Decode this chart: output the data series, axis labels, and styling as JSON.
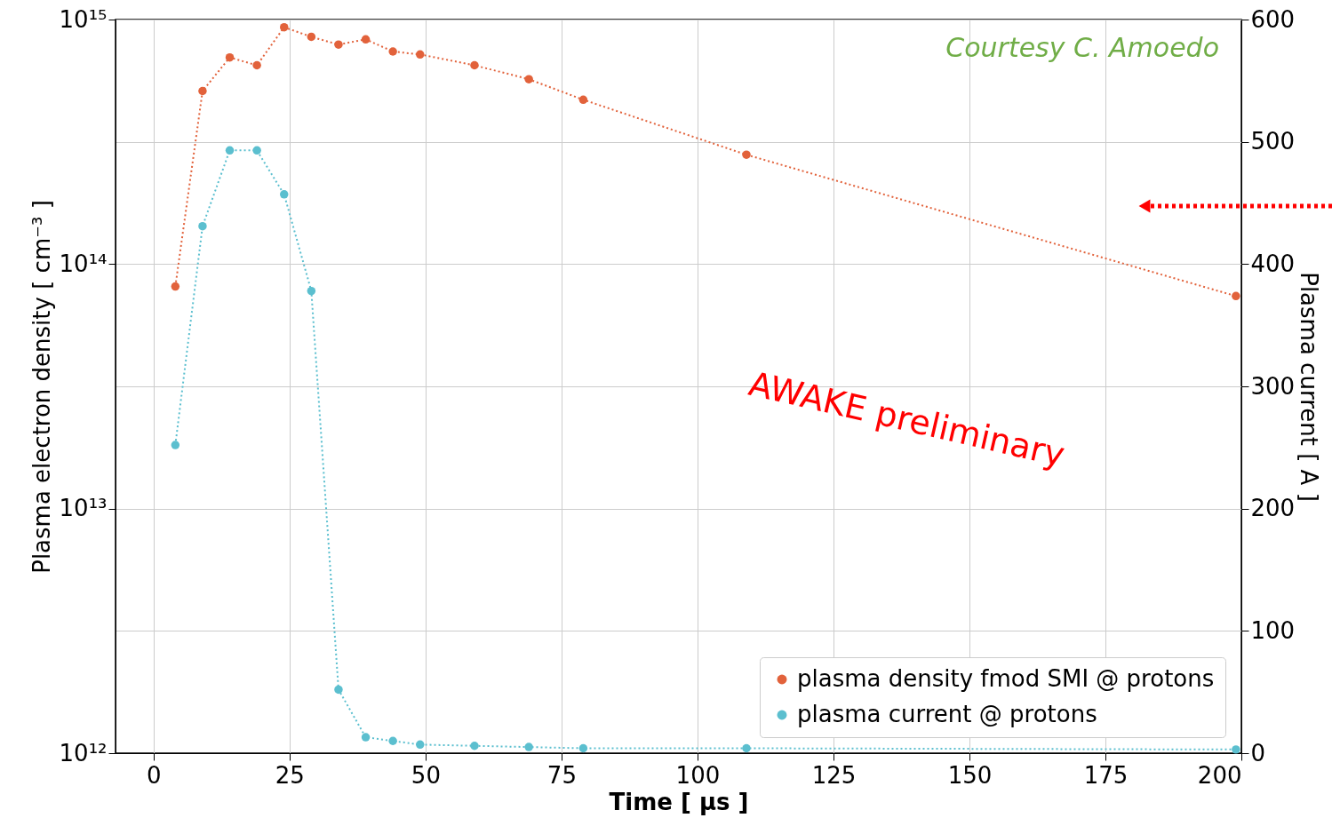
{
  "chart_data": {
    "type": "line",
    "xlabel": "Time [ μs ]",
    "ylabel": "Plasma electron density [ cm⁻³ ]",
    "y2label": "Plasma current [ A ]",
    "x": [
      4,
      9,
      14,
      19,
      24,
      29,
      34,
      39,
      44,
      49,
      59,
      69,
      79,
      109,
      199
    ],
    "series": [
      {
        "name": "plasma density fmod SMI @ protons",
        "color": "#e2623b",
        "values": [
          81000000000000.0,
          510000000000000.0,
          700000000000000.0,
          650000000000000.0,
          930000000000000.0,
          850000000000000.0,
          790000000000000.0,
          830000000000000.0,
          740000000000000.0,
          720000000000000.0,
          650000000000000.0,
          570000000000000.0,
          470000000000000.0,
          280000000000000.0,
          74000000000000.0
        ]
      },
      {
        "name": "plasma current @ protons",
        "color": "#5bbfcf",
        "axis": "y2",
        "values": [
          252,
          431,
          493,
          493,
          457,
          378,
          52,
          13,
          10,
          7,
          6,
          5,
          4,
          4,
          3
        ]
      }
    ],
    "xlim": [
      -7,
      200
    ],
    "xticks": [
      0,
      25,
      50,
      75,
      100,
      125,
      150,
      175,
      200
    ],
    "ylim": [
      1000000000000.0,
      1000000000000000.0
    ],
    "yticks": [
      {
        "value": 1000000000000.0,
        "label": "10¹²"
      },
      {
        "value": 10000000000000.0,
        "label": "10¹³"
      },
      {
        "value": 100000000000000.0,
        "label": "10¹⁴"
      },
      {
        "value": 1000000000000000.0,
        "label": "10¹⁵"
      }
    ],
    "y2lim": [
      0,
      600
    ],
    "y2ticks": [
      0,
      100,
      200,
      300,
      400,
      500,
      600
    ],
    "log": "y",
    "grid": true,
    "legend": "bottom right",
    "marker": "circle",
    "line_style": "dotted",
    "annotations": [
      "Courtesy C. Amoedo",
      "AWAKE preliminary"
    ]
  }
}
